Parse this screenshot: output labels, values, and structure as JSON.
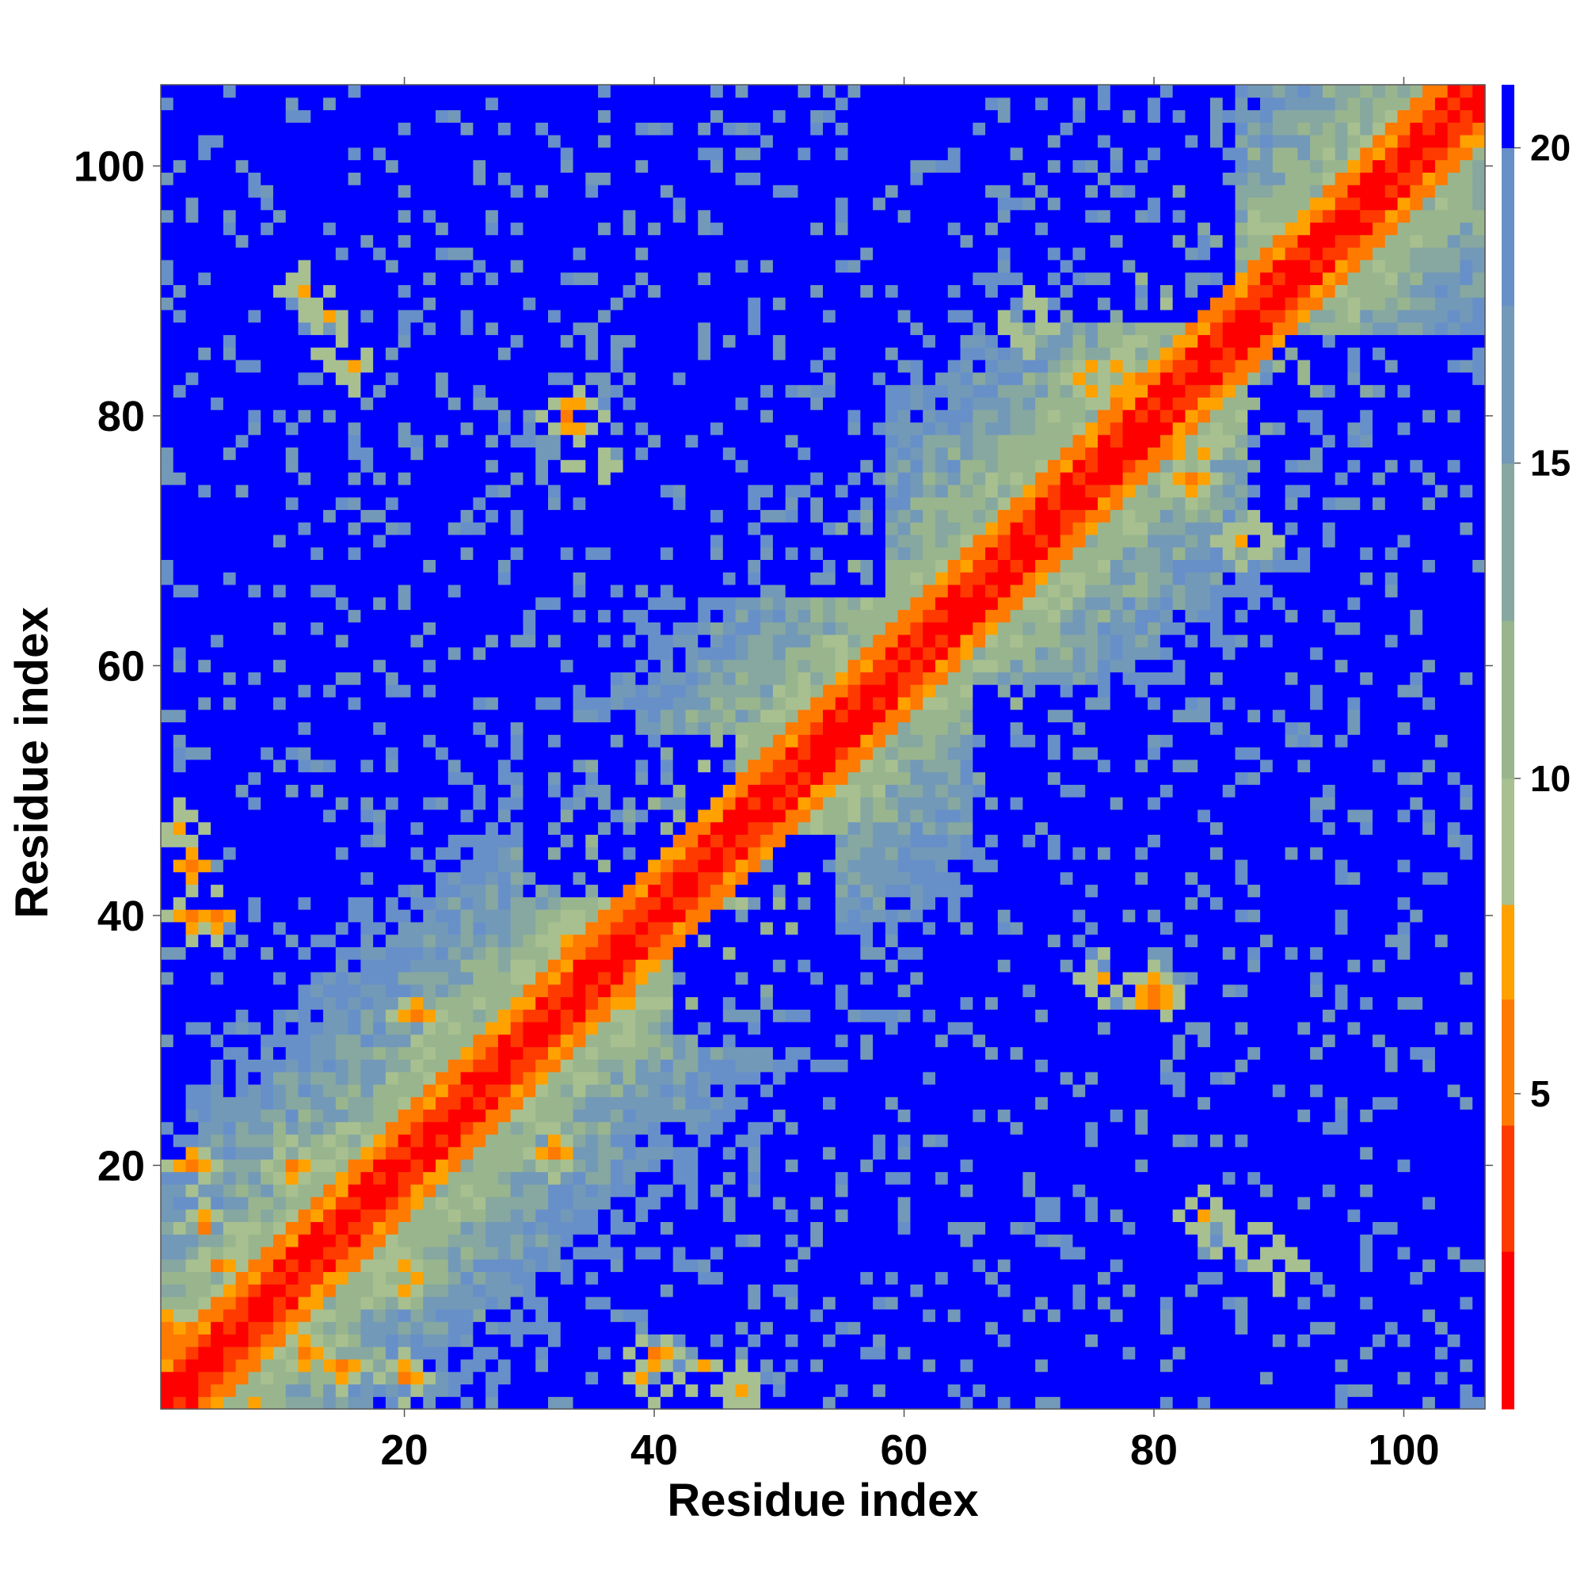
{
  "chart_data": {
    "type": "heatmap",
    "title": "",
    "xlabel": "Residue index",
    "ylabel": "Residue index",
    "n_residues": 106,
    "xlim": [
      1,
      106
    ],
    "ylim": [
      1,
      106
    ],
    "xticks": [
      20,
      40,
      60,
      80,
      100
    ],
    "yticks": [
      20,
      40,
      60,
      80,
      100
    ],
    "colorbar": {
      "ticks": [
        5,
        10,
        15,
        20
      ],
      "range": [
        0,
        21
      ],
      "colors": [
        {
          "max": 2.5,
          "color": "#ff0000"
        },
        {
          "max": 4.5,
          "color": "#ff3a00"
        },
        {
          "max": 6.5,
          "color": "#ff7a00"
        },
        {
          "max": 8.0,
          "color": "#ffa200"
        },
        {
          "max": 10.0,
          "color": "#a8c090"
        },
        {
          "max": 12.5,
          "color": "#99b58e"
        },
        {
          "max": 15.0,
          "color": "#86a8a0"
        },
        {
          "max": 17.5,
          "color": "#7399b8"
        },
        {
          "max": 20.0,
          "color": "#6890c8"
        },
        {
          "max": 99,
          "color": "#0000ff"
        }
      ]
    },
    "contacts": [
      {
        "i": 1,
        "j": 6,
        "d": 5
      },
      {
        "i": 3,
        "j": 20,
        "d": 6
      },
      {
        "i": 4,
        "j": 15,
        "d": 6
      },
      {
        "i": 5,
        "j": 12,
        "d": 6
      },
      {
        "i": 11,
        "j": 20,
        "d": 6
      },
      {
        "i": 21,
        "j": 32,
        "d": 6
      },
      {
        "i": 33,
        "j": 38,
        "d": 7
      },
      {
        "i": 3,
        "j": 44,
        "d": 6
      },
      {
        "i": 5,
        "j": 40,
        "d": 6
      },
      {
        "i": 12,
        "j": 90,
        "d": 7
      },
      {
        "i": 15,
        "j": 85,
        "d": 7
      },
      {
        "i": 33,
        "j": 80,
        "d": 6
      },
      {
        "i": 75,
        "j": 83,
        "d": 6
      },
      {
        "i": 77,
        "j": 83,
        "d": 6
      },
      {
        "i": 76,
        "j": 35,
        "d": 7
      },
      {
        "i": 80,
        "j": 34,
        "d": 6
      },
      {
        "i": 84,
        "j": 16,
        "d": 7
      },
      {
        "i": 88,
        "j": 14,
        "d": 7
      },
      {
        "i": 70,
        "j": 87,
        "d": 7
      },
      {
        "i": 88,
        "j": 70,
        "d": 7
      },
      {
        "i": 40,
        "j": 3,
        "d": 6
      },
      {
        "i": 47,
        "j": 2,
        "d": 7
      }
    ],
    "blue_regions": [
      {
        "x": [
          8,
          12
        ],
        "y": [
          95,
          106
        ],
        "intensity": 1
      },
      {
        "x": [
          20,
          40
        ],
        "y": [
          92,
          106
        ],
        "intensity": 1
      },
      {
        "x": [
          38,
          58
        ],
        "y": [
          66,
          86
        ],
        "intensity": 1
      },
      {
        "x": [
          8,
          16
        ],
        "y": [
          43,
          58
        ],
        "intensity": 1
      },
      {
        "x": [
          20,
          28
        ],
        "y": [
          74,
          86
        ],
        "intensity": 1
      },
      {
        "x": [
          30,
          38
        ],
        "y": [
          42,
          56
        ],
        "intensity": 1
      },
      {
        "x": [
          42,
          58
        ],
        "y": [
          5,
          16
        ],
        "intensity": 1
      },
      {
        "x": [
          44,
          54
        ],
        "y": [
          34,
          46
        ],
        "intensity": 1
      },
      {
        "x": [
          70,
          86
        ],
        "y": [
          38,
          58
        ],
        "intensity": 1
      },
      {
        "x": [
          72,
          86
        ],
        "y": [
          90,
          106
        ],
        "intensity": 1
      },
      {
        "x": [
          88,
          106
        ],
        "y": [
          70,
          84
        ],
        "intensity": 1
      },
      {
        "x": [
          90,
          106
        ],
        "y": [
          14,
          40
        ],
        "intensity": 1
      },
      {
        "x": [
          66,
          86
        ],
        "y": [
          16,
          28
        ],
        "intensity": 1
      },
      {
        "x": [
          70,
          86
        ],
        "y": [
          5,
          16
        ],
        "intensity": 1
      },
      {
        "x": [
          58,
          76
        ],
        "y": [
          26,
          36
        ],
        "intensity": 1
      }
    ]
  }
}
